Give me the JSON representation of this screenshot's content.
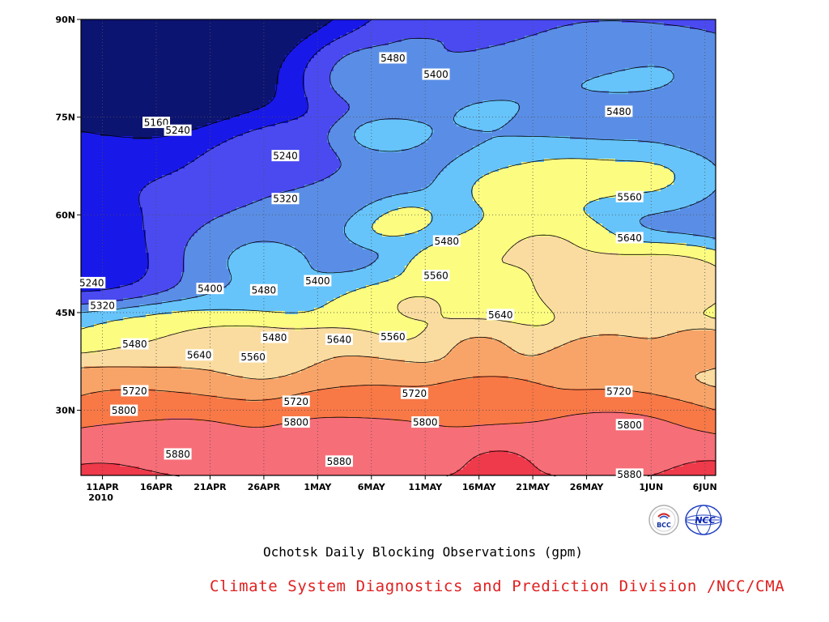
{
  "chart_data": {
    "type": "contour",
    "title": "Ochotsk Daily Blocking Observations (gpm)",
    "source": "Climate System Diagnostics and Prediction Division /NCC/CMA",
    "xlabel": "",
    "ylabel": "",
    "x_range": [
      "2010-04-09",
      "2010-06-07"
    ],
    "y_range": [
      20,
      90
    ],
    "x_ticks": [
      {
        "date": "2010-04-11",
        "label": "11APR",
        "sub": "2010"
      },
      {
        "date": "2010-04-16",
        "label": "16APR"
      },
      {
        "date": "2010-04-21",
        "label": "21APR"
      },
      {
        "date": "2010-04-26",
        "label": "26APR"
      },
      {
        "date": "2010-05-01",
        "label": "1MAY"
      },
      {
        "date": "2010-05-06",
        "label": "6MAY"
      },
      {
        "date": "2010-05-11",
        "label": "11MAY"
      },
      {
        "date": "2010-05-16",
        "label": "16MAY"
      },
      {
        "date": "2010-05-21",
        "label": "21MAY"
      },
      {
        "date": "2010-05-26",
        "label": "26MAY"
      },
      {
        "date": "2010-06-01",
        "label": "1JUN"
      },
      {
        "date": "2010-06-06",
        "label": "6JUN"
      }
    ],
    "y_ticks": [
      {
        "lat": 30,
        "label": "30N"
      },
      {
        "lat": 45,
        "label": "45N"
      },
      {
        "lat": 60,
        "label": "60N"
      },
      {
        "lat": 75,
        "label": "75N"
      },
      {
        "lat": 90,
        "label": "90N"
      }
    ],
    "grid": true,
    "levels": [
      {
        "max": 5160,
        "color": "#0c1471"
      },
      {
        "max": 5240,
        "color": "#1818e8"
      },
      {
        "max": 5320,
        "color": "#4a4af0"
      },
      {
        "max": 5400,
        "color": "#5a8ee6"
      },
      {
        "max": 5480,
        "color": "#66c4fa"
      },
      {
        "max": 5560,
        "color": "#fcfc80"
      },
      {
        "max": 5640,
        "color": "#fadca0"
      },
      {
        "max": 5720,
        "color": "#f8a468"
      },
      {
        "max": 5800,
        "color": "#f87846"
      },
      {
        "max": 5880,
        "color": "#f66e78"
      },
      {
        "max": 9999,
        "color": "#ee3a4a"
      }
    ],
    "contour_labels": [
      {
        "value": "5160",
        "date": "2010-04-16",
        "lat": 74.2
      },
      {
        "value": "5240",
        "date": "2010-04-18",
        "lat": 73.0
      },
      {
        "value": "5240",
        "date": "2010-04-28",
        "lat": 69.1
      },
      {
        "value": "5320",
        "date": "2010-04-28",
        "lat": 62.5
      },
      {
        "value": "5480",
        "date": "2010-05-08",
        "lat": 84.1
      },
      {
        "value": "5400",
        "date": "2010-05-12",
        "lat": 81.6
      },
      {
        "value": "5480",
        "date": "2010-05-29",
        "lat": 75.9
      },
      {
        "value": "5560",
        "date": "2010-05-30",
        "lat": 62.8
      },
      {
        "value": "5480",
        "date": "2010-05-13",
        "lat": 56.0
      },
      {
        "value": "5640",
        "date": "2010-05-30",
        "lat": 56.5
      },
      {
        "value": "5560",
        "date": "2010-05-12",
        "lat": 50.7
      },
      {
        "value": "5240",
        "date": "2010-04-10",
        "lat": 49.6
      },
      {
        "value": "5400",
        "date": "2010-04-21",
        "lat": 48.7
      },
      {
        "value": "5480",
        "date": "2010-04-26",
        "lat": 48.5
      },
      {
        "value": "5400",
        "date": "2010-05-01",
        "lat": 49.9
      },
      {
        "value": "5320",
        "date": "2010-04-11",
        "lat": 46.1
      },
      {
        "value": "5640",
        "date": "2010-05-18",
        "lat": 44.7
      },
      {
        "value": "5480",
        "date": "2010-04-14",
        "lat": 40.2
      },
      {
        "value": "5480",
        "date": "2010-04-27",
        "lat": 41.2
      },
      {
        "value": "5640",
        "date": "2010-05-03",
        "lat": 40.9
      },
      {
        "value": "5560",
        "date": "2010-05-08",
        "lat": 41.3
      },
      {
        "value": "5640",
        "date": "2010-04-20",
        "lat": 38.5
      },
      {
        "value": "5560",
        "date": "2010-04-25",
        "lat": 38.2
      },
      {
        "value": "5720",
        "date": "2010-04-14",
        "lat": 33.0
      },
      {
        "value": "5720",
        "date": "2010-04-29",
        "lat": 31.4
      },
      {
        "value": "5720",
        "date": "2010-05-10",
        "lat": 32.6
      },
      {
        "value": "5720",
        "date": "2010-05-29",
        "lat": 32.9
      },
      {
        "value": "5800",
        "date": "2010-04-13",
        "lat": 30.0
      },
      {
        "value": "5800",
        "date": "2010-04-29",
        "lat": 28.2
      },
      {
        "value": "5800",
        "date": "2010-05-11",
        "lat": 28.2
      },
      {
        "value": "5800",
        "date": "2010-05-30",
        "lat": 27.8
      },
      {
        "value": "5880",
        "date": "2010-04-18",
        "lat": 23.3
      },
      {
        "value": "5880",
        "date": "2010-05-03",
        "lat": 22.2
      },
      {
        "value": "5880",
        "date": "2010-05-30",
        "lat": 20.2
      }
    ],
    "fields": [
      {
        "value": 4960,
        "date": "2010-04-14",
        "lat": 88.0,
        "r": 14
      },
      {
        "value": 4990,
        "date": "2010-04-17",
        "lat": 87.0,
        "r": 14
      },
      {
        "value": 5010,
        "date": "2010-04-13",
        "lat": 82.0,
        "r": 13
      },
      {
        "value": 5030,
        "date": "2010-04-16",
        "lat": 81.0,
        "r": 12
      },
      {
        "value": 5120,
        "date": "2010-04-16",
        "lat": 76.0,
        "r": 10
      },
      {
        "value": 5180,
        "date": "2010-04-10",
        "lat": 72.0,
        "r": 14
      },
      {
        "value": 5150,
        "date": "2010-04-09",
        "lat": 56.0,
        "r": 13
      },
      {
        "value": 5190,
        "date": "2010-04-11",
        "lat": 62.0,
        "r": 11
      },
      {
        "value": 5160,
        "date": "2010-04-10",
        "lat": 52.0,
        "r": 9
      },
      {
        "value": 5230,
        "date": "2010-04-21",
        "lat": 84.0,
        "r": 10
      },
      {
        "value": 5230,
        "date": "2010-04-28",
        "lat": 68.0,
        "r": 5
      },
      {
        "value": 5310,
        "date": "2010-04-25",
        "lat": 70.0,
        "r": 8
      },
      {
        "value": 5300,
        "date": "2010-04-14",
        "lat": 62.0,
        "r": 11
      },
      {
        "value": 5440,
        "date": "2010-04-23",
        "lat": 55.0,
        "r": 9
      },
      {
        "value": 5350,
        "date": "2010-05-02",
        "lat": 65.0,
        "r": 10
      },
      {
        "value": 5500,
        "date": "2010-04-26",
        "lat": 53.0,
        "r": 3
      },
      {
        "value": 5360,
        "date": "2010-05-11",
        "lat": 88.0,
        "r": 6
      },
      {
        "value": 5300,
        "date": "2010-05-11",
        "lat": 89.0,
        "r": 3
      },
      {
        "value": 5380,
        "date": "2010-05-27",
        "lat": 86.0,
        "r": 6
      },
      {
        "value": 5370,
        "date": "2010-06-07",
        "lat": 73.0,
        "r": 5
      },
      {
        "value": 5420,
        "date": "2010-05-05",
        "lat": 82.0,
        "r": 8
      },
      {
        "value": 5450,
        "date": "2010-05-15",
        "lat": 75.0,
        "r": 10
      },
      {
        "value": 5440,
        "date": "2010-05-23",
        "lat": 80.0,
        "r": 12
      },
      {
        "value": 5460,
        "date": "2010-06-02",
        "lat": 82.0,
        "r": 12
      },
      {
        "value": 5510,
        "date": "2010-05-07",
        "lat": 72.0,
        "r": 5
      },
      {
        "value": 5530,
        "date": "2010-05-07",
        "lat": 58.0,
        "r": 4
      },
      {
        "value": 5580,
        "date": "2010-05-09",
        "lat": 60.0,
        "r": 5
      },
      {
        "value": 5550,
        "date": "2010-05-07",
        "lat": 45.0,
        "r": 6
      },
      {
        "value": 5620,
        "date": "2010-05-10",
        "lat": 46.0,
        "r": 5
      },
      {
        "value": 5610,
        "date": "2010-05-15",
        "lat": 52.0,
        "r": 7
      },
      {
        "value": 5560,
        "date": "2010-05-18",
        "lat": 64.0,
        "r": 8
      },
      {
        "value": 5570,
        "date": "2010-05-24",
        "lat": 66.0,
        "r": 8
      },
      {
        "value": 5560,
        "date": "2010-06-01",
        "lat": 66.0,
        "r": 8
      },
      {
        "value": 5640,
        "date": "2010-05-22",
        "lat": 56.0,
        "r": 8
      },
      {
        "value": 5680,
        "date": "2010-05-27",
        "lat": 49.0,
        "r": 8
      },
      {
        "value": 5690,
        "date": "2010-06-03",
        "lat": 50.0,
        "r": 8
      },
      {
        "value": 5760,
        "date": "2010-06-06",
        "lat": 40.0,
        "r": 5
      },
      {
        "value": 5740,
        "date": "2010-05-28",
        "lat": 38.0,
        "r": 8
      },
      {
        "value": 5700,
        "date": "2010-05-16",
        "lat": 40.0,
        "r": 6
      },
      {
        "value": 5650,
        "date": "2010-04-20",
        "lat": 38.0,
        "r": 9
      },
      {
        "value": 5620,
        "date": "2010-04-26",
        "lat": 39.0,
        "r": 6
      },
      {
        "value": 5660,
        "date": "2010-05-03",
        "lat": 39.0,
        "r": 6
      },
      {
        "value": 5530,
        "date": "2010-04-14",
        "lat": 41.0,
        "r": 8
      },
      {
        "value": 5470,
        "date": "2010-04-09",
        "lat": 42.0,
        "r": 4
      },
      {
        "value": 5740,
        "date": "2010-04-13",
        "lat": 33.0,
        "r": 9
      },
      {
        "value": 5730,
        "date": "2010-05-06",
        "lat": 33.0,
        "r": 8
      },
      {
        "value": 5810,
        "date": "2010-05-17",
        "lat": 32.0,
        "r": 7
      },
      {
        "value": 5850,
        "date": "2010-04-17",
        "lat": 27.0,
        "r": 10
      },
      {
        "value": 5860,
        "date": "2010-05-05",
        "lat": 27.0,
        "r": 10
      },
      {
        "value": 5860,
        "date": "2010-05-28",
        "lat": 26.0,
        "r": 10
      },
      {
        "value": 5900,
        "date": "2010-04-12",
        "lat": 22.0,
        "r": 8
      },
      {
        "value": 5910,
        "date": "2010-05-18",
        "lat": 23.0,
        "r": 6
      },
      {
        "value": 5900,
        "date": "2010-06-06",
        "lat": 21.0,
        "r": 6
      },
      {
        "value": 5870,
        "date": "2010-05-05",
        "lat": 20.0,
        "r": 10
      }
    ]
  },
  "logos": [
    {
      "name": "bcc-logo",
      "text": "BCC"
    },
    {
      "name": "ncc-logo",
      "text": "NCC"
    }
  ]
}
